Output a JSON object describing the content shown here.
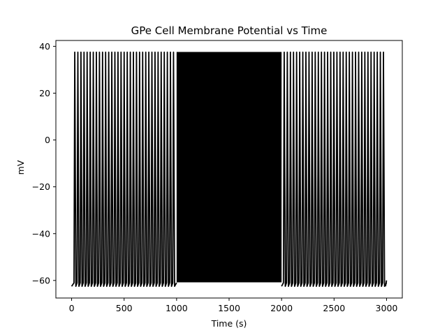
{
  "chart_data": {
    "type": "line",
    "title": "GPe Cell Membrane Potential vs Time",
    "xlabel": "Time (s)",
    "ylabel": "mV",
    "xlim": [
      -150,
      3150
    ],
    "ylim": [
      -67.5,
      42.5
    ],
    "xticks": [
      0,
      500,
      1000,
      1500,
      2000,
      2500,
      3000
    ],
    "yticks": [
      -60,
      -40,
      -20,
      0,
      20,
      40
    ],
    "grid": false,
    "series": [
      {
        "color": "#000000",
        "segments": [
          {
            "x_start": 0,
            "x_end": 1000,
            "mode": "tonic",
            "spike_count": 33,
            "first_spike": 30
          },
          {
            "x_start": 1000,
            "x_end": 2000,
            "mode": "high-frequency burst"
          },
          {
            "x_start": 2000,
            "x_end": 3000,
            "mode": "tonic",
            "spike_count": 33,
            "first_spike": 2025
          }
        ],
        "rest_potential": -62.5,
        "afterhyperpolarization": -61,
        "spike_peak": 37.5,
        "burst_floor": -60.8,
        "burst_peak": 37.6,
        "final_value": -60
      }
    ]
  }
}
